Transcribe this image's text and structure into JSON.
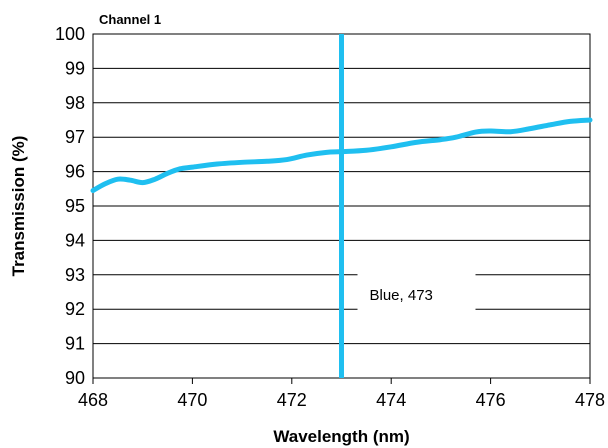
{
  "chart_data": {
    "type": "line",
    "title": "Channel 1",
    "xlabel": "Wavelength (nm)",
    "ylabel": "Transmission (%)",
    "xlim": [
      468,
      478
    ],
    "ylim": [
      90,
      100
    ],
    "xticks": [
      468,
      470,
      472,
      474,
      476,
      478
    ],
    "yticks": [
      90,
      91,
      92,
      93,
      94,
      95,
      96,
      97,
      98,
      99,
      100
    ],
    "grid": "horizontal",
    "series_color": "#1fbff0",
    "series": [
      {
        "x": [
          468.0,
          468.25,
          468.5,
          468.75,
          469.0,
          469.25,
          469.5,
          469.75,
          470.0,
          470.5,
          471.0,
          471.5,
          471.9,
          472.3,
          472.7,
          473.0,
          473.5,
          474.0,
          474.5,
          475.0,
          475.3,
          475.7,
          476.0,
          476.4,
          476.8,
          477.2,
          477.6,
          478.0
        ],
        "y": [
          95.45,
          95.65,
          95.78,
          95.75,
          95.68,
          95.78,
          95.95,
          96.08,
          96.13,
          96.22,
          96.27,
          96.3,
          96.35,
          96.48,
          96.56,
          96.58,
          96.62,
          96.72,
          96.85,
          96.93,
          97.0,
          97.15,
          97.18,
          97.16,
          97.25,
          97.36,
          97.46,
          97.5
        ]
      }
    ],
    "marker": {
      "x": 473,
      "label": "Blue, 473"
    }
  }
}
